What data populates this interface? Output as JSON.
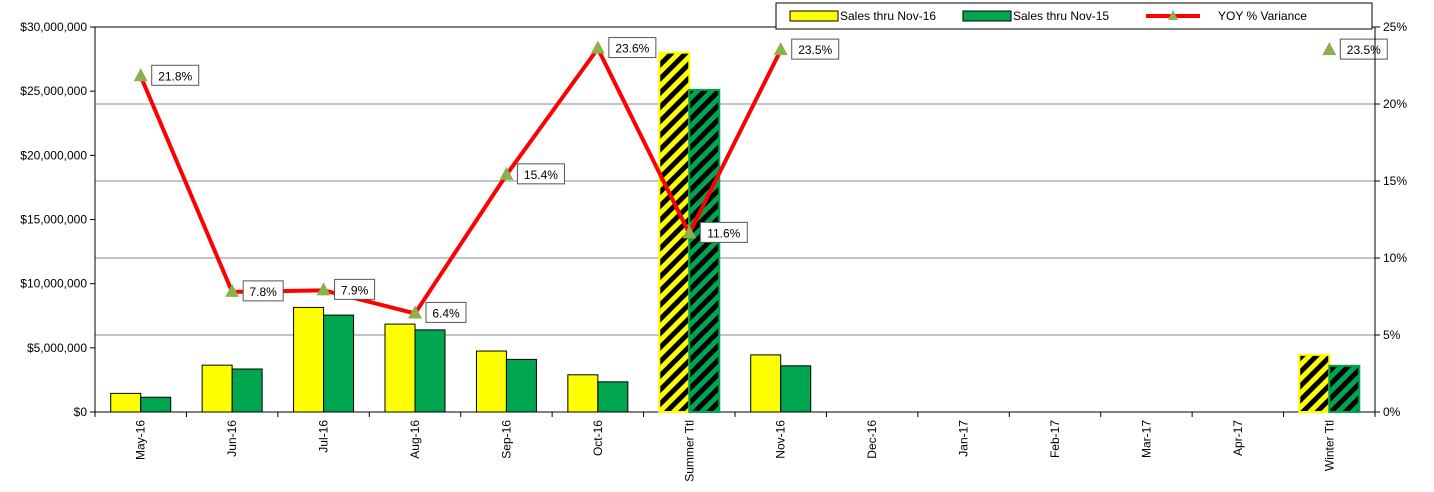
{
  "chart_data": {
    "type": "bar",
    "categories": [
      "May-16",
      "Jun-16",
      "Jul-16",
      "Aug-16",
      "Sep-16",
      "Oct-16",
      "Summer Ttl",
      "Nov-16",
      "Dec-16",
      "Jan-17",
      "Feb-17",
      "Mar-17",
      "Apr-17",
      "Winter Ttl"
    ],
    "series": [
      {
        "name": "Sales thru Nov-16",
        "type": "bar",
        "color": "#ffff00",
        "values": [
          1450000,
          3650000,
          8150000,
          6850000,
          4750000,
          2900000,
          28000000,
          4450000,
          0,
          0,
          0,
          0,
          0,
          4450000
        ],
        "hatched": [
          false,
          false,
          false,
          false,
          false,
          false,
          true,
          false,
          false,
          false,
          false,
          false,
          false,
          true
        ]
      },
      {
        "name": "Sales thru Nov-15",
        "type": "bar",
        "color": "#00a550",
        "values": [
          1150000,
          3350000,
          7550000,
          6400000,
          4100000,
          2350000,
          25100000,
          3600000,
          0,
          0,
          0,
          0,
          0,
          3600000
        ],
        "hatched": [
          false,
          false,
          false,
          false,
          false,
          false,
          true,
          false,
          false,
          false,
          false,
          false,
          false,
          true
        ]
      },
      {
        "name": "YOY % Variance",
        "type": "line",
        "color": "#ff0000",
        "marker_color": "#8db04c",
        "axis": "right",
        "values": [
          21.8,
          7.8,
          7.9,
          6.4,
          15.4,
          23.6,
          11.6,
          23.5,
          null,
          null,
          null,
          null,
          null,
          23.5
        ],
        "labels": [
          "21.8%",
          "7.8%",
          "7.9%",
          "6.4%",
          "15.4%",
          "23.6%",
          "11.6%",
          "23.5%",
          "",
          "",
          "",
          "",
          "",
          "23.5%"
        ]
      }
    ],
    "yaxis_left": {
      "min": 0,
      "max": 30000000,
      "ticks": [
        0,
        5000000,
        10000000,
        15000000,
        20000000,
        25000000,
        30000000
      ],
      "tick_labels": [
        "$0",
        "$5,000,000",
        "$10,000,000",
        "$15,000,000",
        "$20,000,000",
        "$25,000,000",
        "$30,000,000"
      ]
    },
    "yaxis_right": {
      "min": 0,
      "max": 25,
      "ticks": [
        0,
        5,
        10,
        15,
        20,
        25
      ],
      "tick_labels": [
        "0%",
        "5%",
        "10%",
        "15%",
        "20%",
        "25%"
      ]
    },
    "grid": true,
    "legend_position": "top-right",
    "title": "",
    "xlabel": "",
    "ylabel": ""
  }
}
